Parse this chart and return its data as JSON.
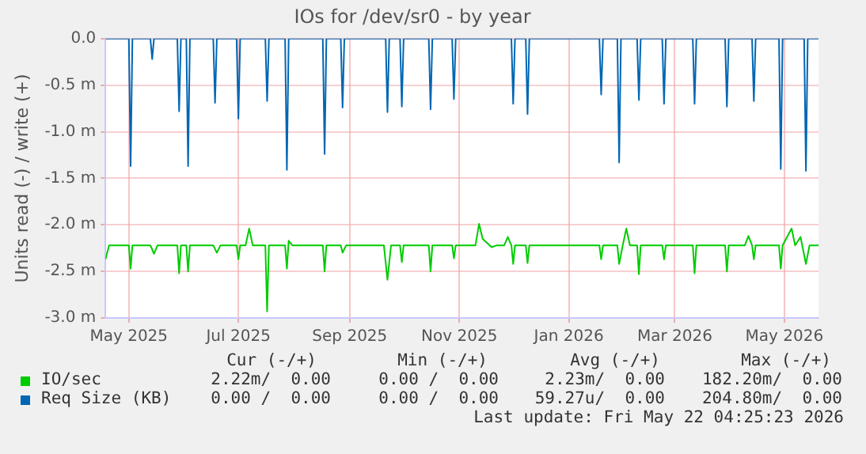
{
  "chart_data": {
    "type": "line",
    "title": "IOs for /dev/sr0 - by year",
    "ylabel": "Units read (-) / write (+)",
    "xlim": [
      "2025-04-18",
      "2026-05-20"
    ],
    "xticks": [
      {
        "value": "2025-05-01",
        "label": "May 2025"
      },
      {
        "value": "2025-07-01",
        "label": "Jul 2025"
      },
      {
        "value": "2025-09-01",
        "label": "Sep 2025"
      },
      {
        "value": "2025-11-01",
        "label": "Nov 2025"
      },
      {
        "value": "2026-01-01",
        "label": "Jan 2026"
      },
      {
        "value": "2026-03-01",
        "label": "Mar 2026"
      },
      {
        "value": "2026-05-01",
        "label": "May 2026"
      }
    ],
    "ylim": [
      -3,
      0
    ],
    "yticks": [
      {
        "value": -3,
        "label": "-3.0 m"
      },
      {
        "value": -2.5,
        "label": "-2.5 m"
      },
      {
        "value": -2,
        "label": "-2.0 m"
      },
      {
        "value": -1.5,
        "label": "-1.5 m"
      },
      {
        "value": -1,
        "label": "-1.0 m"
      },
      {
        "value": -0.5,
        "label": "-0.5 m"
      },
      {
        "value": 0,
        "label": "0.0"
      }
    ],
    "grid": true,
    "legend": "bottom",
    "marker": "none",
    "line_style": "solid",
    "series": [
      {
        "name": "IO/sec",
        "color": "#00cc00",
        "x": [
          "2025-04-18",
          "2025-04-20",
          "2025-05-01",
          "2025-05-02",
          "2025-05-03",
          "2025-05-13",
          "2025-05-15",
          "2025-05-17",
          "2025-05-28",
          "2025-05-29",
          "2025-05-30",
          "2025-06-02",
          "2025-06-03",
          "2025-06-04",
          "2025-06-17",
          "2025-06-19",
          "2025-06-21",
          "2025-06-30",
          "2025-07-01",
          "2025-07-02",
          "2025-07-05",
          "2025-07-07",
          "2025-07-09",
          "2025-07-16",
          "2025-07-17",
          "2025-07-18",
          "2025-07-27",
          "2025-07-28",
          "2025-07-29",
          "2025-07-31",
          "2025-08-17",
          "2025-08-18",
          "2025-08-19",
          "2025-08-27",
          "2025-08-28",
          "2025-08-30",
          "2025-09-20",
          "2025-09-22",
          "2025-09-24",
          "2025-09-29",
          "2025-09-30",
          "2025-10-01",
          "2025-10-15",
          "2025-10-16",
          "2025-10-17",
          "2025-10-28",
          "2025-10-29",
          "2025-10-30",
          "2025-11-10",
          "2025-11-12",
          "2025-11-14",
          "2025-11-19",
          "2025-11-22",
          "2025-11-26",
          "2025-11-28",
          "2025-11-30",
          "2025-12-01",
          "2025-12-02",
          "2025-12-08",
          "2025-12-09",
          "2025-12-10",
          "2026-01-18",
          "2026-01-19",
          "2026-01-20",
          "2026-01-28",
          "2026-01-29",
          "2026-01-31",
          "2026-02-02",
          "2026-02-04",
          "2026-02-08",
          "2026-02-09",
          "2026-02-10",
          "2026-02-22",
          "2026-02-23",
          "2026-02-24",
          "2026-03-11",
          "2026-03-12",
          "2026-03-13",
          "2026-03-29",
          "2026-03-30",
          "2026-03-31",
          "2026-04-09",
          "2026-04-11",
          "2026-04-13",
          "2026-04-14",
          "2026-04-15",
          "2026-04-28",
          "2026-04-29",
          "2026-04-30",
          "2026-05-05",
          "2026-05-07",
          "2026-05-10",
          "2026-05-13",
          "2026-05-15",
          "2026-05-20"
        ],
        "values": [
          -2.37,
          -2.22,
          -2.22,
          -2.47,
          -2.22,
          -2.22,
          -2.31,
          -2.22,
          -2.22,
          -2.52,
          -2.22,
          -2.22,
          -2.5,
          -2.22,
          -2.22,
          -2.3,
          -2.22,
          -2.22,
          -2.37,
          -2.22,
          -2.22,
          -2.04,
          -2.22,
          -2.22,
          -2.93,
          -2.22,
          -2.22,
          -2.47,
          -2.17,
          -2.22,
          -2.22,
          -2.5,
          -2.22,
          -2.22,
          -2.3,
          -2.22,
          -2.22,
          -2.59,
          -2.22,
          -2.22,
          -2.4,
          -2.22,
          -2.22,
          -2.5,
          -2.22,
          -2.22,
          -2.36,
          -2.22,
          -2.22,
          -1.99,
          -2.15,
          -2.24,
          -2.22,
          -2.22,
          -2.13,
          -2.22,
          -2.42,
          -2.22,
          -2.22,
          -2.41,
          -2.22,
          -2.22,
          -2.37,
          -2.22,
          -2.22,
          -2.42,
          -2.22,
          -2.04,
          -2.22,
          -2.22,
          -2.53,
          -2.22,
          -2.22,
          -2.37,
          -2.22,
          -2.22,
          -2.52,
          -2.22,
          -2.22,
          -2.5,
          -2.22,
          -2.22,
          -2.12,
          -2.22,
          -2.37,
          -2.22,
          -2.22,
          -2.47,
          -2.22,
          -2.04,
          -2.22,
          -2.13,
          -2.42,
          -2.22,
          -2.22
        ]
      },
      {
        "name": "Req Size (KB)",
        "color": "#0066b3",
        "x": [
          "2025-04-18",
          "2025-05-01",
          "2025-05-02",
          "2025-05-03",
          "2025-05-13",
          "2025-05-14",
          "2025-05-15",
          "2025-05-28",
          "2025-05-29",
          "2025-05-30",
          "2025-06-02",
          "2025-06-03",
          "2025-06-04",
          "2025-06-17",
          "2025-06-18",
          "2025-06-19",
          "2025-06-30",
          "2025-07-01",
          "2025-07-02",
          "2025-07-16",
          "2025-07-17",
          "2025-07-18",
          "2025-07-27",
          "2025-07-28",
          "2025-07-29",
          "2025-08-17",
          "2025-08-18",
          "2025-08-19",
          "2025-08-27",
          "2025-08-28",
          "2025-08-29",
          "2025-09-21",
          "2025-09-22",
          "2025-09-23",
          "2025-09-29",
          "2025-09-30",
          "2025-10-01",
          "2025-10-15",
          "2025-10-16",
          "2025-10-17",
          "2025-10-28",
          "2025-10-29",
          "2025-10-30",
          "2025-11-30",
          "2025-12-01",
          "2025-12-02",
          "2025-12-08",
          "2025-12-09",
          "2025-12-10",
          "2026-01-18",
          "2026-01-19",
          "2026-01-20",
          "2026-01-28",
          "2026-01-29",
          "2026-01-30",
          "2026-02-08",
          "2026-02-09",
          "2026-02-10",
          "2026-02-22",
          "2026-02-23",
          "2026-02-24",
          "2026-03-11",
          "2026-03-12",
          "2026-03-13",
          "2026-03-29",
          "2026-03-30",
          "2026-03-31",
          "2026-04-13",
          "2026-04-14",
          "2026-04-15",
          "2026-04-28",
          "2026-04-29",
          "2026-04-30",
          "2026-05-12",
          "2026-05-13",
          "2026-05-14",
          "2026-05-20"
        ],
        "values": [
          0,
          0,
          -1.37,
          0,
          0,
          -0.22,
          0,
          0,
          -0.78,
          0,
          0,
          -1.37,
          0,
          0,
          -0.69,
          0,
          0,
          -0.86,
          0,
          0,
          -0.67,
          0,
          0,
          -1.41,
          0,
          0,
          -1.24,
          0,
          0,
          -0.74,
          0,
          0,
          -0.79,
          0,
          0,
          -0.73,
          0,
          0,
          -0.76,
          0,
          0,
          -0.65,
          0,
          0,
          -0.7,
          0,
          0,
          -0.81,
          0,
          0,
          -0.6,
          0,
          0,
          -1.33,
          0,
          0,
          -0.66,
          0,
          0,
          -0.7,
          0,
          0,
          -0.7,
          0,
          0,
          -0.73,
          0,
          0,
          -0.67,
          0,
          0,
          -1.4,
          0,
          0,
          -1.42,
          0,
          0
        ]
      }
    ],
    "annotations": [
      "Cur (-/+)",
      "Min (-/+)",
      "Avg (-/+)",
      "Max (-/+)",
      "2.22m/  0.00",
      "0.00 /  0.00",
      "2.23m/  0.00",
      "182.20m/  0.00",
      "0.00 /  0.00",
      "0.00 /  0.00",
      "59.27u/  0.00",
      "204.80m/  0.00",
      "Last update: Fri May 22 04:25:23 2026"
    ]
  }
}
